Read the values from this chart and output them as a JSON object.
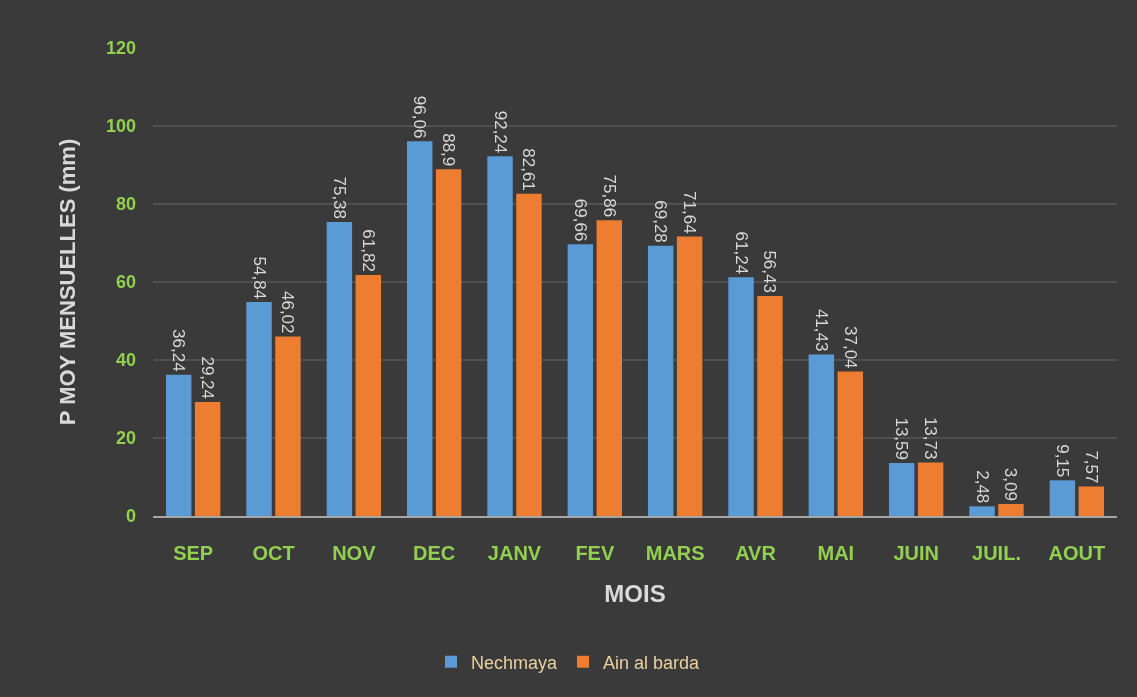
{
  "chart_data": {
    "type": "bar",
    "xlabel": "MOIS",
    "ylabel": "P MOY MENSUELLES (mm)",
    "categories": [
      "SEP",
      "OCT",
      "NOV",
      "DEC",
      "JANV",
      "FEV",
      "MARS",
      "AVR",
      "MAI",
      "JUIN",
      "JUIL.",
      "AOUT"
    ],
    "series": [
      {
        "name": "Nechmaya",
        "color": "#5b9bd5",
        "values": [
          36.24,
          54.84,
          75.38,
          96.06,
          92.24,
          69.66,
          69.28,
          61.24,
          41.43,
          13.59,
          2.48,
          9.15
        ],
        "value_labels": [
          "36,24",
          "54,84",
          "75,38",
          "96,06",
          "92,24",
          "69,66",
          "69,28",
          "61,24",
          "41,43",
          "13,59",
          "2,48",
          "9,15"
        ]
      },
      {
        "name": "Ain al barda",
        "color": "#ed7d31",
        "values": [
          29.24,
          46.02,
          61.82,
          88.9,
          82.61,
          75.86,
          71.64,
          56.43,
          37.04,
          13.73,
          3.09,
          7.57
        ],
        "value_labels": [
          "29,24",
          "46,02",
          "61,82",
          "88,9",
          "82,61",
          "75,86",
          "71,64",
          "56,43",
          "37,04",
          "13,73",
          "3,09",
          "7,57"
        ]
      }
    ],
    "ylim": [
      0,
      120
    ],
    "yticks": [
      0,
      20,
      40,
      60,
      80,
      100,
      120
    ],
    "grid": "y",
    "legend": "bottom"
  }
}
